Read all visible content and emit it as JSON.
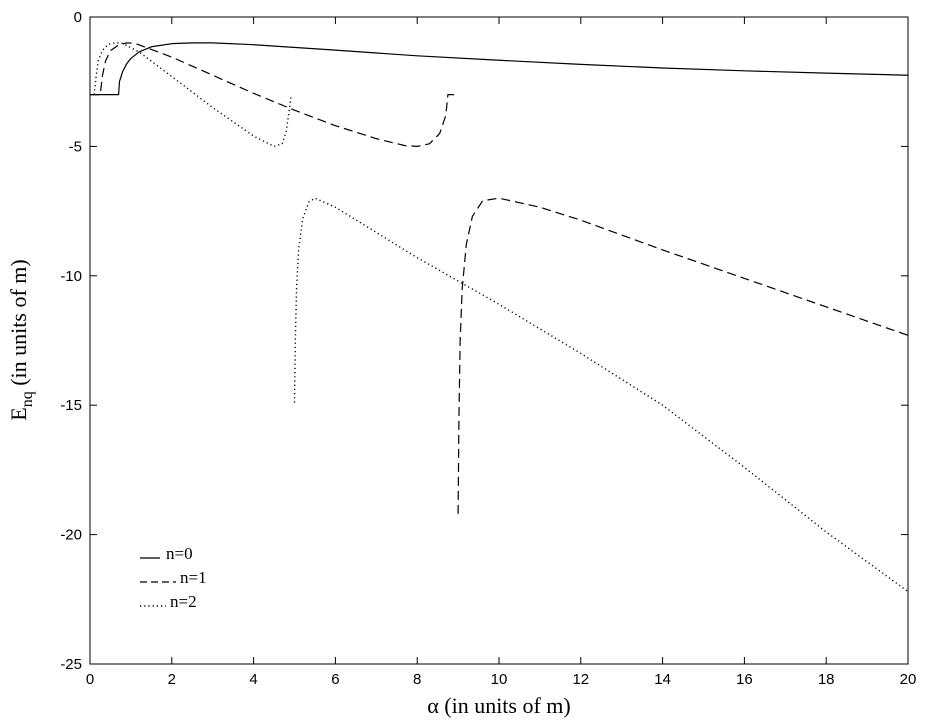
{
  "chart_data": {
    "type": "line",
    "xlabel": "α (in units of m)",
    "ylabel_main": "E",
    "ylabel_sub": "nq",
    "ylabel_rest": " (in units of m)",
    "xlim": [
      0,
      20
    ],
    "ylim": [
      -25,
      0
    ],
    "xticks": [
      0,
      2,
      4,
      6,
      8,
      10,
      12,
      14,
      16,
      18,
      20
    ],
    "yticks": [
      0,
      -5,
      -10,
      -15,
      -20,
      -25
    ],
    "grid": false,
    "legend_position": "bottom-left",
    "series": [
      {
        "name": "n=0",
        "style": "solid",
        "segments": [
          [
            [
              0,
              -3
            ],
            [
              0.7,
              -3
            ],
            [
              0.72,
              -2.5
            ],
            [
              0.8,
              -2.1
            ],
            [
              0.9,
              -1.8
            ],
            [
              1.0,
              -1.6
            ],
            [
              1.2,
              -1.35
            ],
            [
              1.5,
              -1.15
            ],
            [
              2.0,
              -1.03
            ],
            [
              2.5,
              -1.0
            ],
            [
              3.0,
              -1.0
            ],
            [
              4,
              -1.07
            ],
            [
              6,
              -1.28
            ],
            [
              8,
              -1.5
            ],
            [
              10,
              -1.67
            ],
            [
              12,
              -1.83
            ],
            [
              14,
              -1.97
            ],
            [
              16,
              -2.08
            ],
            [
              18,
              -2.17
            ],
            [
              20,
              -2.25
            ]
          ]
        ]
      },
      {
        "name": "n=1",
        "style": "dashed",
        "segments": [
          [
            [
              0,
              -3
            ],
            [
              0.25,
              -3
            ],
            [
              0.3,
              -2.3
            ],
            [
              0.38,
              -1.7
            ],
            [
              0.5,
              -1.3
            ],
            [
              0.7,
              -1.08
            ],
            [
              0.9,
              -1.0
            ],
            [
              1.1,
              -1.02
            ],
            [
              2,
              -1.55
            ],
            [
              3,
              -2.25
            ],
            [
              4,
              -2.95
            ],
            [
              5,
              -3.6
            ],
            [
              6,
              -4.2
            ],
            [
              7,
              -4.7
            ],
            [
              7.7,
              -4.97
            ],
            [
              8.0,
              -5.0
            ],
            [
              8.3,
              -4.9
            ],
            [
              8.55,
              -4.5
            ],
            [
              8.7,
              -3.8
            ],
            [
              8.75,
              -3.0
            ],
            [
              8.9,
              -3.0
            ]
          ],
          [
            [
              9.0,
              -19.2
            ],
            [
              9.02,
              -15.5
            ],
            [
              9.05,
              -12.5
            ],
            [
              9.1,
              -10.5
            ],
            [
              9.2,
              -8.8
            ],
            [
              9.35,
              -7.7
            ],
            [
              9.6,
              -7.1
            ],
            [
              10.0,
              -7.0
            ],
            [
              11,
              -7.35
            ],
            [
              12,
              -7.85
            ],
            [
              14,
              -9.0
            ],
            [
              16,
              -10.1
            ],
            [
              18,
              -11.2
            ],
            [
              20,
              -12.3
            ]
          ]
        ]
      },
      {
        "name": "n=2",
        "style": "dotted",
        "segments": [
          [
            [
              0.1,
              -3
            ],
            [
              0.15,
              -2.3
            ],
            [
              0.2,
              -1.7
            ],
            [
              0.3,
              -1.3
            ],
            [
              0.45,
              -1.05
            ],
            [
              0.6,
              -1.0
            ],
            [
              0.8,
              -1.02
            ],
            [
              1.2,
              -1.35
            ],
            [
              2,
              -2.3
            ],
            [
              3,
              -3.5
            ],
            [
              4,
              -4.6
            ],
            [
              4.5,
              -5.0
            ],
            [
              4.7,
              -4.9
            ],
            [
              4.8,
              -4.4
            ],
            [
              4.88,
              -3.5
            ],
            [
              4.92,
              -3.0
            ]
          ],
          [
            [
              5.0,
              -14.9
            ],
            [
              5.02,
              -12.5
            ],
            [
              5.05,
              -10.5
            ],
            [
              5.1,
              -9.0
            ],
            [
              5.2,
              -7.8
            ],
            [
              5.35,
              -7.15
            ],
            [
              5.5,
              -7.0
            ],
            [
              6,
              -7.35
            ],
            [
              8,
              -9.3
            ],
            [
              10,
              -11.1
            ],
            [
              12,
              -13.0
            ],
            [
              14,
              -15.0
            ],
            [
              16,
              -17.4
            ],
            [
              18,
              -19.9
            ],
            [
              20,
              -22.2
            ]
          ]
        ]
      }
    ]
  },
  "legend": {
    "entries": [
      {
        "label": "n=0",
        "style": "solid"
      },
      {
        "label": "n=1",
        "style": "dashed"
      },
      {
        "label": "n=2",
        "style": "dotted"
      }
    ]
  },
  "colors": {
    "line": "#000000",
    "background": "#ffffff"
  }
}
